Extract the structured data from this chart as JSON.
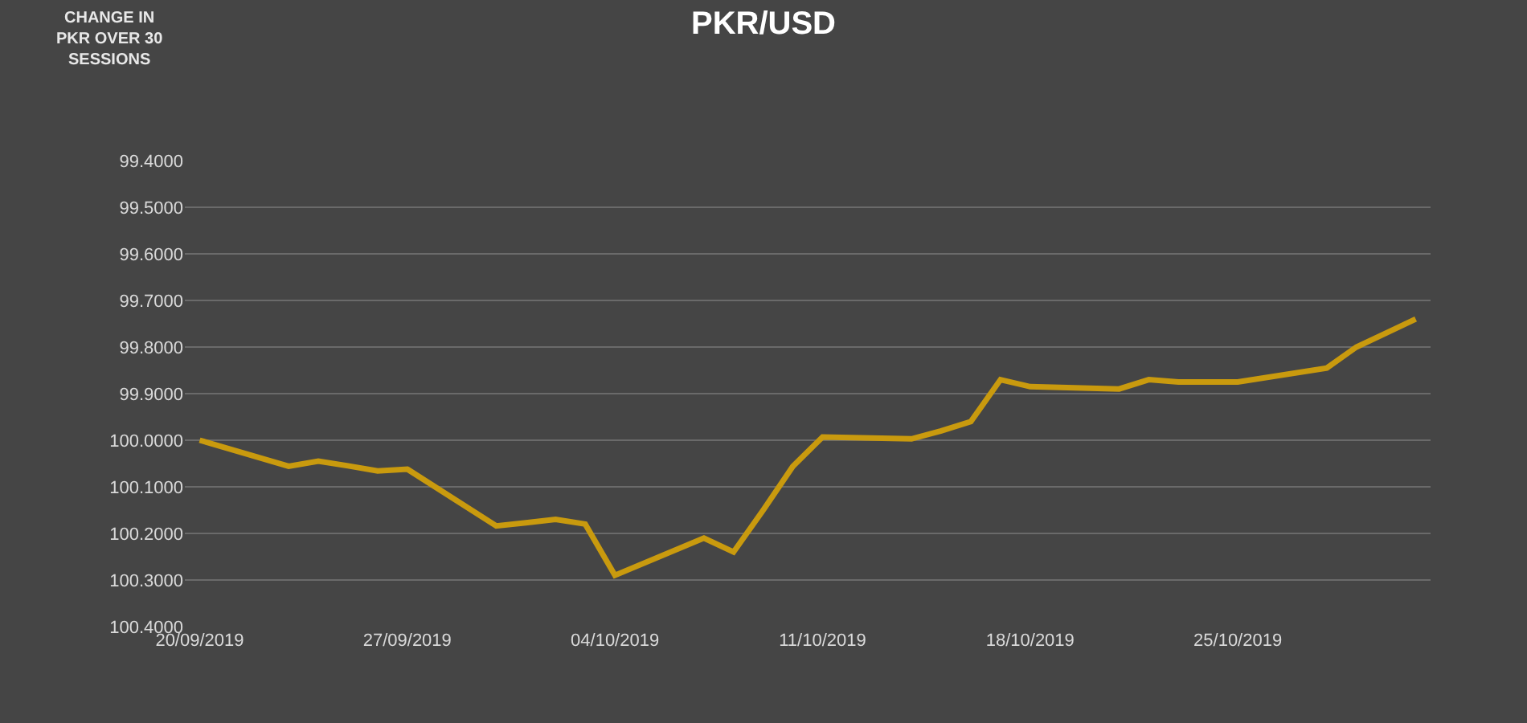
{
  "chart_data": {
    "type": "line",
    "title": "PKR/USD",
    "annotations": [
      "CHANGE IN PKR OVER 30 SESSIONS"
    ],
    "x": [
      "2019-09-20",
      "2019-09-23",
      "2019-09-24",
      "2019-09-25",
      "2019-09-26",
      "2019-09-27",
      "2019-09-30",
      "2019-10-01",
      "2019-10-02",
      "2019-10-03",
      "2019-10-04",
      "2019-10-07",
      "2019-10-08",
      "2019-10-09",
      "2019-10-10",
      "2019-10-11",
      "2019-10-14",
      "2019-10-15",
      "2019-10-16",
      "2019-10-17",
      "2019-10-18",
      "2019-10-21",
      "2019-10-22",
      "2019-10-23",
      "2019-10-24",
      "2019-10-25",
      "2019-10-28",
      "2019-10-29",
      "2019-10-30",
      "2019-10-31"
    ],
    "series": [
      {
        "color": "#c99a0e",
        "values": [
          100.0,
          100.056,
          100.045,
          100.055,
          100.066,
          100.062,
          100.184,
          100.177,
          100.17,
          100.18,
          100.29,
          100.21,
          100.24,
          100.15,
          100.056,
          99.993,
          99.997,
          99.98,
          99.96,
          99.87,
          99.885,
          99.89,
          99.87,
          99.875,
          99.875,
          99.875,
          99.845,
          99.8,
          99.77,
          99.74
        ]
      }
    ],
    "xlim": [
      "2019-09-19T12:00",
      "2019-10-31T12:00"
    ],
    "xticks": [
      {
        "value": "2019-09-20",
        "label": "20/09/2019"
      },
      {
        "value": "2019-09-27",
        "label": "27/09/2019"
      },
      {
        "value": "2019-10-04",
        "label": "04/10/2019"
      },
      {
        "value": "2019-10-11",
        "label": "11/10/2019"
      },
      {
        "value": "2019-10-18",
        "label": "18/10/2019"
      },
      {
        "value": "2019-10-25",
        "label": "25/10/2019"
      }
    ],
    "ylim": [
      100.4,
      99.4
    ],
    "yticks": [
      {
        "value": 99.4,
        "label": "99.4000"
      },
      {
        "value": 99.5,
        "label": "99.5000"
      },
      {
        "value": 99.6,
        "label": "99.6000"
      },
      {
        "value": 99.7,
        "label": "99.7000"
      },
      {
        "value": 99.8,
        "label": "99.8000"
      },
      {
        "value": 99.9,
        "label": "99.9000"
      },
      {
        "value": 100.0,
        "label": "100.0000"
      },
      {
        "value": 100.1,
        "label": "100.1000"
      },
      {
        "value": 100.2,
        "label": "100.2000"
      },
      {
        "value": 100.3,
        "label": "100.3000"
      },
      {
        "value": 100.4,
        "label": "100.4000"
      }
    ],
    "grid": "y",
    "marker": "none",
    "line_style": "solid"
  }
}
